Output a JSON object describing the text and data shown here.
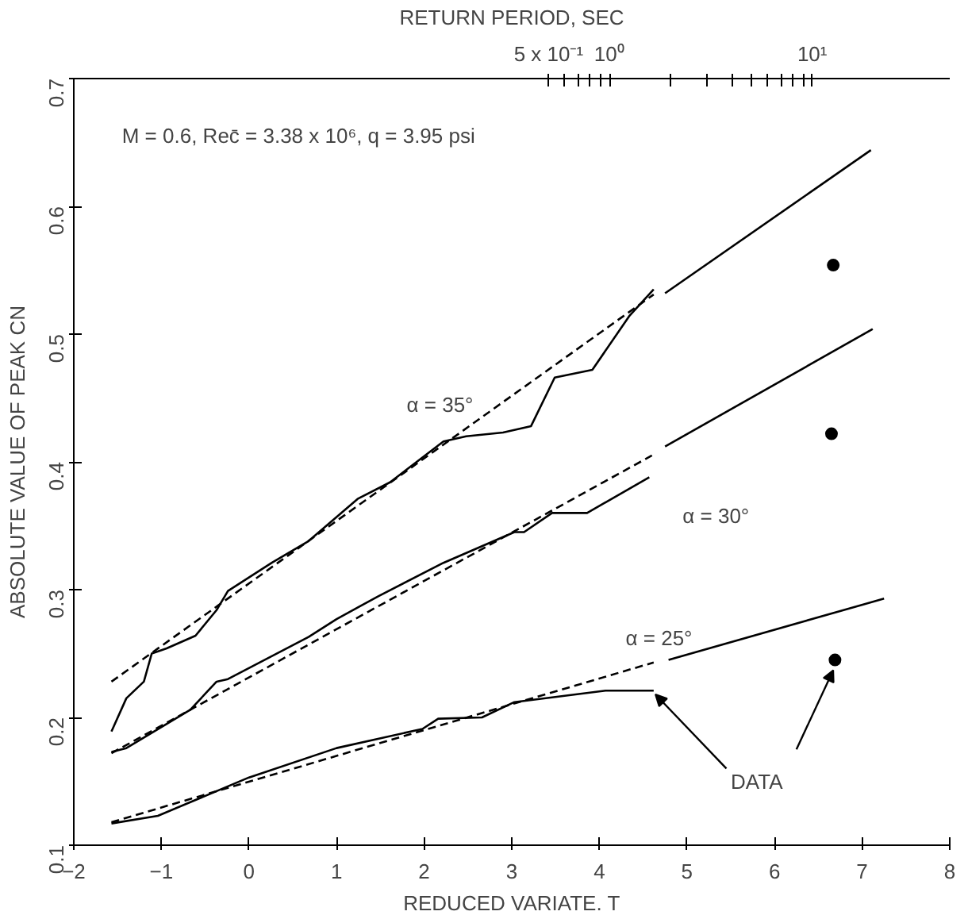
{
  "chart_data": {
    "type": "line",
    "xlabel": "REDUCED VARIATE. T",
    "ylabel": "ABSOLUTE VALUE OF PEAK CN",
    "x2label": "RETURN PERIOD, SEC",
    "xlim": [
      -2,
      8
    ],
    "xticks": [
      -2,
      -1,
      0,
      1,
      2,
      3,
      4,
      5,
      6,
      7,
      8
    ],
    "ylim": [
      0.1,
      0.7
    ],
    "yticks": [
      0.1,
      0.2,
      0.3,
      0.4,
      0.5,
      0.6,
      0.7
    ],
    "x2lim": [
      0.00227,
      47.7
    ],
    "log": "x2",
    "x2ticks": [
      {
        "value": 0.5,
        "label": "5 x 10⁻¹"
      },
      {
        "value": 0.6,
        "label": null
      },
      {
        "value": 0.7,
        "label": null
      },
      {
        "value": 0.8,
        "label": null
      },
      {
        "value": 0.9,
        "label": null
      },
      {
        "value": 1,
        "label": "10⁰"
      },
      {
        "value": 2,
        "label": null
      },
      {
        "value": 3,
        "label": null
      },
      {
        "value": 4,
        "label": null
      },
      {
        "value": 5,
        "label": null
      },
      {
        "value": 6,
        "label": null
      },
      {
        "value": 7,
        "label": null
      },
      {
        "value": 8,
        "label": null
      },
      {
        "value": 9,
        "label": null
      },
      {
        "value": 10,
        "label": "10¹"
      }
    ],
    "grid": false,
    "marker": "none",
    "series": [
      {
        "color": "#000000",
        "line_style": "solid",
        "x": [
          -1.57,
          -1.4,
          -1.2,
          -1.11,
          -0.94,
          -0.61,
          -0.37,
          -0.24,
          0.26,
          0.68,
          1.24,
          1.61,
          2.22,
          2.48,
          2.9,
          3.22,
          3.49,
          3.92,
          4.34,
          4.62
        ],
        "values": [
          0.189,
          0.215,
          0.228,
          0.25,
          0.254,
          0.264,
          0.284,
          0.299,
          0.321,
          0.338,
          0.371,
          0.384,
          0.416,
          0.42,
          0.423,
          0.428,
          0.466,
          0.472,
          0.514,
          0.535
        ]
      },
      {
        "color": "#000000",
        "line_style": "dashed",
        "x": [
          -1.57,
          4.62
        ],
        "values": [
          0.228,
          0.531
        ]
      },
      {
        "color": "#000000",
        "line_style": "solid",
        "x": [
          4.75,
          7.1
        ],
        "values": [
          0.532,
          0.644
        ]
      },
      {
        "color": "#000000",
        "line_style": "solid",
        "x": [
          -1.57,
          -1.4,
          -0.67,
          -0.37,
          -0.24,
          0.68,
          1.0,
          1.48,
          2.22,
          3.03,
          3.14,
          3.46,
          3.86,
          4.57
        ],
        "values": [
          0.173,
          0.176,
          0.206,
          0.228,
          0.23,
          0.263,
          0.277,
          0.295,
          0.321,
          0.345,
          0.345,
          0.36,
          0.36,
          0.388
        ]
      },
      {
        "color": "#000000",
        "line_style": "dashed",
        "x": [
          -1.57,
          4.6
        ],
        "values": [
          0.172,
          0.405
        ]
      },
      {
        "color": "#000000",
        "line_style": "solid",
        "x": [
          4.75,
          7.12
        ],
        "values": [
          0.412,
          0.504
        ]
      },
      {
        "color": "#000000",
        "line_style": "solid",
        "x": [
          -1.57,
          -1.04,
          0.0,
          1.0,
          1.98,
          2.16,
          2.66,
          3.03,
          4.07,
          4.62
        ],
        "values": [
          0.117,
          0.123,
          0.153,
          0.176,
          0.191,
          0.199,
          0.2,
          0.212,
          0.221,
          0.221
        ]
      },
      {
        "color": "#000000",
        "line_style": "dashed",
        "x": [
          -1.57,
          4.62
        ],
        "values": [
          0.118,
          0.243
        ]
      },
      {
        "color": "#000000",
        "line_style": "solid",
        "x": [
          4.79,
          7.25
        ],
        "values": [
          0.245,
          0.293
        ]
      },
      {
        "type": "scatter",
        "color": "#000000",
        "marker": "circle",
        "x": [
          6.67,
          6.65,
          6.69
        ],
        "values": [
          0.554,
          0.422,
          0.245
        ]
      }
    ],
    "annotations": [
      "M = 0.6, Rec̄ = 3.38 x 10⁶, q = 3.95 psi",
      "α = 35°",
      "α = 30°",
      "α = 25°",
      {
        "text": "DATA",
        "x": 4.62,
        "y": 0.221
      }
    ]
  }
}
